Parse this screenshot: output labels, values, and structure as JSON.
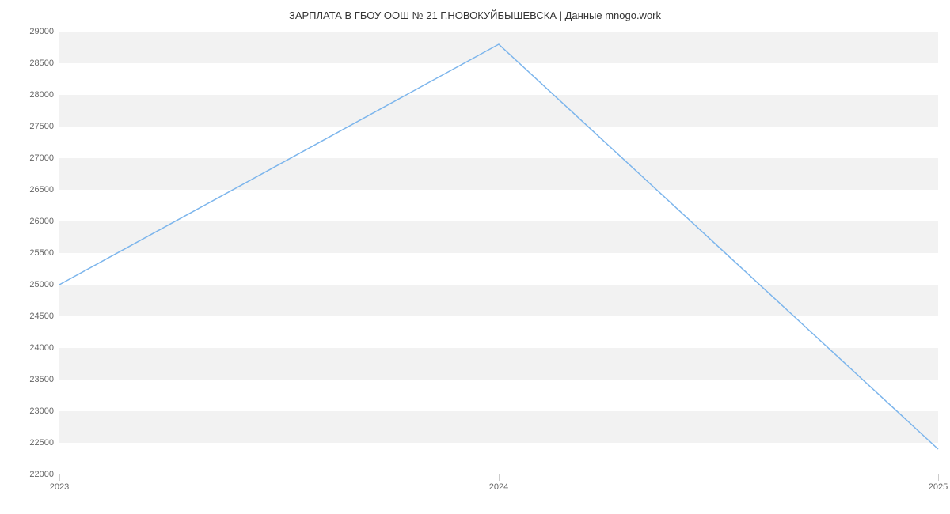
{
  "chart": {
    "type": "line",
    "title": "ЗАРПЛАТА В ГБОУ ООШ № 21 Г.НОВОКУЙБЫШЕВСКА | Данные mnogo.work",
    "title_fontsize": 13,
    "title_color": "#333333",
    "background_color": "#ffffff",
    "plot_band_color": "#f2f2f2",
    "grid_line_color": "#e6e6e6",
    "axis_label_color": "#666666",
    "axis_label_fontsize": 11,
    "x": {
      "labels": [
        "2023",
        "2024",
        "2025"
      ],
      "positions": [
        0,
        0.5,
        1
      ]
    },
    "y": {
      "min": 22000,
      "max": 29000,
      "tick_step": 500,
      "ticks": [
        22000,
        22500,
        23000,
        23500,
        24000,
        24500,
        25000,
        25500,
        26000,
        26500,
        27000,
        27500,
        28000,
        28500,
        29000
      ]
    },
    "series": [
      {
        "name": "salary",
        "color": "#7cb5ec",
        "line_width": 1.5,
        "x": [
          0,
          0.5,
          1
        ],
        "y": [
          25000,
          28800,
          22400
        ]
      }
    ]
  }
}
